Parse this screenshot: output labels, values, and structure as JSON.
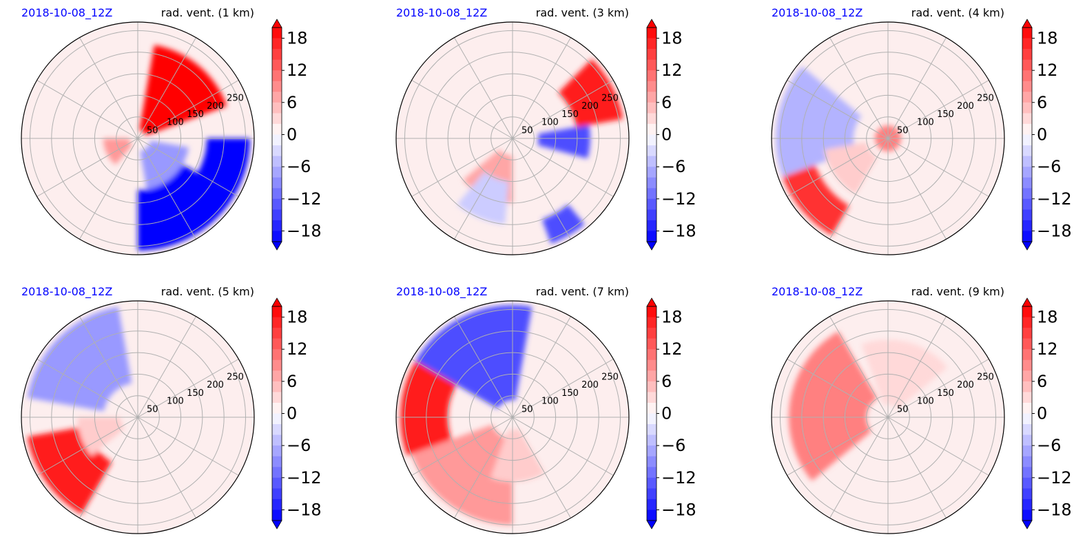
{
  "chart_data": [
    {
      "type": "heatmap",
      "projection": "polar",
      "date": "2018-10-08_12Z",
      "title": "rad. vent. (1 km)",
      "radial_ticks": [
        50,
        100,
        150,
        200,
        250
      ],
      "angular_grid_deg": 30,
      "colorbar": {
        "min": -20,
        "max": 20,
        "ticks": [
          18,
          12,
          6,
          0,
          -6,
          -12,
          -18
        ],
        "extend": "both"
      },
      "features": [
        {
          "r": [
            20,
            220
          ],
          "theta": [
            20,
            80
          ],
          "value": 20
        },
        {
          "r": [
            160,
            260
          ],
          "theta": [
            330,
            360
          ],
          "value": -20
        },
        {
          "r": [
            120,
            260
          ],
          "theta": [
            270,
            330
          ],
          "value": -20
        },
        {
          "r": [
            30,
            120
          ],
          "theta": [
            280,
            350
          ],
          "value": -8
        },
        {
          "r": [
            20,
            80
          ],
          "theta": [
            180,
            230
          ],
          "value": 8
        }
      ]
    },
    {
      "type": "heatmap",
      "projection": "polar",
      "date": "2018-10-08_12Z",
      "title": "rad. vent. (3 km)",
      "radial_ticks": [
        50,
        100,
        150,
        200,
        250
      ],
      "angular_grid_deg": 30,
      "colorbar": {
        "min": -20,
        "max": 20,
        "ticks": [
          18,
          12,
          6,
          0,
          -6,
          -12,
          -18
        ],
        "extend": "both"
      },
      "features": [
        {
          "r": [
            150,
            260
          ],
          "theta": [
            10,
            45
          ],
          "value": 18
        },
        {
          "r": [
            60,
            180
          ],
          "theta": [
            345,
            10
          ],
          "value": -14
        },
        {
          "r": [
            40,
            150
          ],
          "theta": [
            220,
            270
          ],
          "value": 7
        },
        {
          "r": [
            100,
            200
          ],
          "theta": [
            230,
            265
          ],
          "value": -4
        },
        {
          "r": [
            200,
            260
          ],
          "theta": [
            290,
            310
          ],
          "value": -14
        }
      ]
    },
    {
      "type": "heatmap",
      "projection": "polar",
      "date": "2018-10-08_12Z",
      "title": "rad. vent. (4 km)",
      "radial_ticks": [
        50,
        100,
        150,
        200,
        250
      ],
      "angular_grid_deg": 30,
      "colorbar": {
        "min": -20,
        "max": 20,
        "ticks": [
          18,
          12,
          6,
          0,
          -6,
          -12,
          -18
        ],
        "extend": "both"
      },
      "features": [
        {
          "r": [
            80,
            260
          ],
          "theta": [
            140,
            200
          ],
          "value": -6
        },
        {
          "r": [
            180,
            260
          ],
          "theta": [
            200,
            240
          ],
          "value": 16
        },
        {
          "r": [
            50,
            150
          ],
          "theta": [
            190,
            240
          ],
          "value": 4
        },
        {
          "r": [
            0,
            30
          ],
          "theta": [
            0,
            360
          ],
          "value": 10
        }
      ]
    },
    {
      "type": "heatmap",
      "projection": "polar",
      "date": "2018-10-08_12Z",
      "title": "rad. vent. (5 km)",
      "radial_ticks": [
        50,
        100,
        150,
        200,
        250
      ],
      "angular_grid_deg": 30,
      "colorbar": {
        "min": -20,
        "max": 20,
        "ticks": [
          18,
          12,
          6,
          0,
          -6,
          -12,
          -18
        ],
        "extend": "both"
      },
      "features": [
        {
          "r": [
            80,
            260
          ],
          "theta": [
            100,
            170
          ],
          "value": -8
        },
        {
          "r": [
            120,
            260
          ],
          "theta": [
            190,
            240
          ],
          "value": 18
        },
        {
          "r": [
            40,
            140
          ],
          "theta": [
            180,
            220
          ],
          "value": 4
        }
      ]
    },
    {
      "type": "heatmap",
      "projection": "polar",
      "date": "2018-10-08_12Z",
      "title": "rad. vent. (7 km)",
      "radial_ticks": [
        50,
        100,
        150,
        200,
        250
      ],
      "angular_grid_deg": 30,
      "colorbar": {
        "min": -20,
        "max": 20,
        "ticks": [
          18,
          12,
          6,
          0,
          -6,
          -12,
          -18
        ],
        "extend": "both"
      },
      "features": [
        {
          "r": [
            40,
            260
          ],
          "theta": [
            80,
            150
          ],
          "value": -14
        },
        {
          "r": [
            150,
            260
          ],
          "theta": [
            150,
            200
          ],
          "value": 18
        },
        {
          "r": [
            50,
            250
          ],
          "theta": [
            200,
            270
          ],
          "value": 8
        },
        {
          "r": [
            30,
            150
          ],
          "theta": [
            250,
            300
          ],
          "value": 4
        }
      ]
    },
    {
      "type": "heatmap",
      "projection": "polar",
      "date": "2018-10-08_12Z",
      "title": "rad. vent. (9 km)",
      "radial_ticks": [
        50,
        100,
        150,
        200,
        250
      ],
      "angular_grid_deg": 30,
      "colorbar": {
        "min": -20,
        "max": 20,
        "ticks": [
          18,
          12,
          6,
          0,
          -6,
          -12,
          -18
        ],
        "extend": "both"
      },
      "features": [
        {
          "r": [
            50,
            230
          ],
          "theta": [
            120,
            220
          ],
          "value": 10
        },
        {
          "r": [
            30,
            180
          ],
          "theta": [
            40,
            110
          ],
          "value": 3
        }
      ]
    }
  ],
  "colors": {
    "negative_max": "#0000ff",
    "neutral": "#ffffff",
    "positive_max": "#ff0000",
    "date_label": "#0000ff"
  }
}
